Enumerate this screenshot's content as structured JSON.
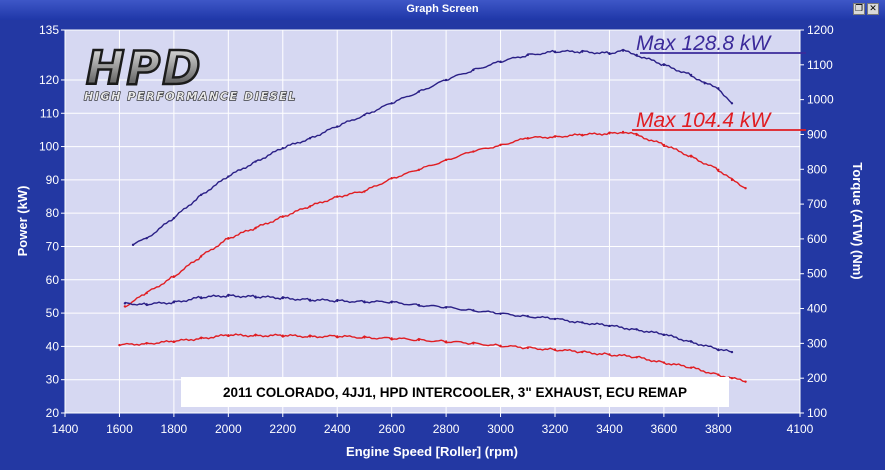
{
  "window": {
    "title": "Graph Screen",
    "restore_icon": "restore-icon",
    "close_icon": "close-icon"
  },
  "logo": {
    "text": "HPD",
    "subtitle": "HIGH PERFORMANCE DIESEL"
  },
  "colors": {
    "background": "#2338a3",
    "plot_area": "#d6d8f2",
    "grid": "#ffffff",
    "run1": "#2a1f86",
    "run2": "#e01d22",
    "max1_label": "#3b2a9a",
    "max2_label": "#e01d22"
  },
  "chart_data": {
    "type": "line",
    "title": "",
    "xlabel": "Engine Speed [Roller] (rpm)",
    "ylabel": "Power (kW)",
    "y2label": "Torque (ATW) (Nm)",
    "xlim": [
      1400,
      4100
    ],
    "ylim": [
      20,
      135
    ],
    "y2lim": [
      100,
      1200
    ],
    "grid": true,
    "xticks": [
      "1400",
      "1600",
      "1800",
      "2000",
      "2200",
      "2400",
      "2600",
      "2800",
      "3000",
      "3200",
      "3400",
      "3600",
      "3800",
      "4100"
    ],
    "yticks": [
      "20",
      "30",
      "40",
      "50",
      "60",
      "70",
      "80",
      "90",
      "100",
      "110",
      "120",
      "135"
    ],
    "y2ticks": [
      "100",
      "200",
      "300",
      "400",
      "500",
      "600",
      "700",
      "800",
      "900",
      "1000",
      "1100",
      "1200"
    ],
    "annotations": {
      "max1": "Max 128.8 kW",
      "max2": "Max 104.4 kW",
      "caption": "2011 COLORADO, 4JJ1, HPD INTERCOOLER, 3\" EXHAUST, ECU REMAP"
    },
    "series": [
      {
        "axis": "left",
        "color": "#2a1f86",
        "x": [
          1650,
          1700,
          1800,
          1900,
          2000,
          2100,
          2200,
          2300,
          2400,
          2500,
          2600,
          2700,
          2800,
          2900,
          3000,
          3100,
          3200,
          3300,
          3400,
          3450,
          3500,
          3600,
          3700,
          3750,
          3800,
          3850
        ],
        "y": [
          70.5,
          72.5,
          78.5,
          85.5,
          91,
          95.5,
          99.5,
          102.5,
          106,
          109.5,
          113,
          116.5,
          120,
          123,
          125.5,
          127.5,
          128.5,
          128.5,
          128,
          128.8,
          127.5,
          124.5,
          121.5,
          119,
          117.5,
          113
        ]
      },
      {
        "axis": "left",
        "color": "#e01d22",
        "x": [
          1620,
          1700,
          1800,
          1900,
          2000,
          2100,
          2200,
          2300,
          2400,
          2500,
          2600,
          2700,
          2800,
          2900,
          3000,
          3100,
          3200,
          3300,
          3400,
          3450,
          3500,
          3600,
          3700,
          3800,
          3850,
          3900
        ],
        "y": [
          52,
          56,
          61,
          67,
          72.5,
          75.5,
          79,
          82,
          85,
          86.5,
          90.5,
          93,
          96,
          98.5,
          100.5,
          102.5,
          103,
          103.5,
          104,
          104.4,
          103.5,
          100.5,
          97,
          93,
          90,
          87.5
        ]
      },
      {
        "axis": "right",
        "color": "#2a1f86",
        "x": [
          1620,
          1700,
          1800,
          1900,
          2000,
          2100,
          2200,
          2300,
          2400,
          2500,
          2600,
          2700,
          2800,
          2900,
          3000,
          3100,
          3200,
          3300,
          3400,
          3500,
          3600,
          3700,
          3800,
          3850
        ],
        "y": [
          415,
          412,
          418,
          432,
          437,
          434,
          430,
          425,
          422,
          420,
          418,
          410,
          403,
          395,
          385,
          378,
          370,
          360,
          350,
          340,
          325,
          305,
          282,
          275
        ]
      },
      {
        "axis": "right",
        "color": "#e01d22",
        "x": [
          1600,
          1700,
          1800,
          1900,
          2000,
          2100,
          2200,
          2300,
          2400,
          2500,
          2600,
          2700,
          2800,
          2900,
          3000,
          3100,
          3200,
          3300,
          3400,
          3500,
          3600,
          3700,
          3800,
          3850,
          3900
        ],
        "y": [
          295,
          300,
          305,
          315,
          323,
          323,
          322,
          320,
          320,
          317,
          314,
          310,
          305,
          300,
          293,
          287,
          282,
          275,
          268,
          260,
          245,
          230,
          210,
          200,
          190
        ]
      }
    ]
  }
}
